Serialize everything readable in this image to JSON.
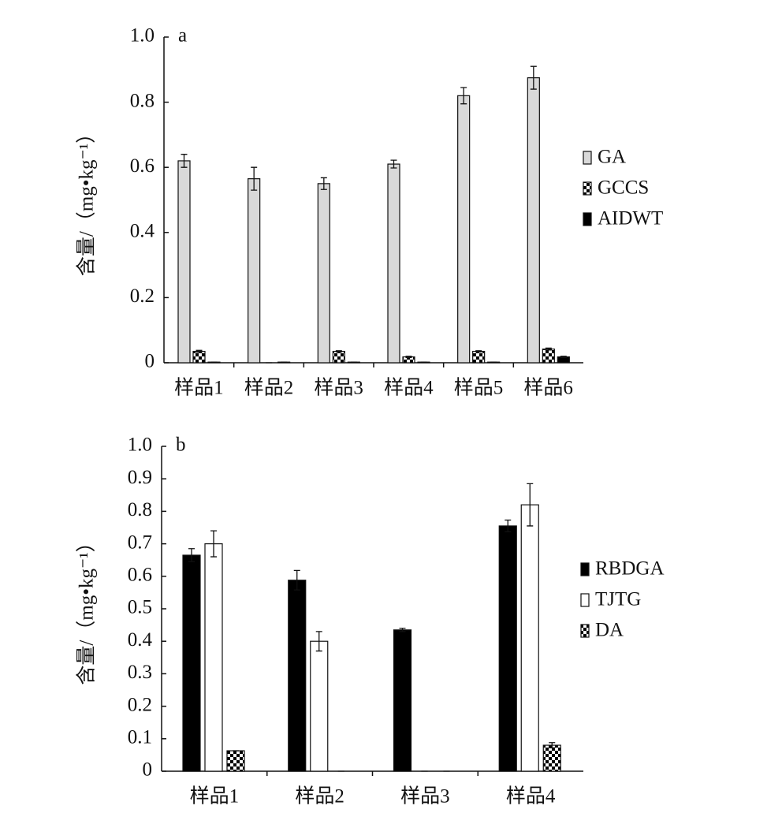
{
  "chart_data": [
    {
      "type": "bar",
      "panel_label": "a",
      "ylabel": "含量/（mg•kg⁻¹）",
      "categories": [
        "样品1",
        "样品2",
        "样品3",
        "样品4",
        "样品5",
        "样品6"
      ],
      "series": [
        {
          "name": "GA",
          "color": "#d9d9d9",
          "values": [
            0.62,
            0.565,
            0.55,
            0.61,
            0.82,
            0.875
          ],
          "errors": [
            0.02,
            0.035,
            0.018,
            0.012,
            0.025,
            0.035
          ]
        },
        {
          "name": "GCCS",
          "color": "#000000",
          "pattern": "checker",
          "values": [
            0.035,
            0,
            0.035,
            0.018,
            0.035,
            0.042
          ],
          "errors": [
            0.003,
            0,
            0.002,
            0.002,
            0.002,
            0.003
          ]
        },
        {
          "name": "AIDWT",
          "color": "#000000",
          "values": [
            0.002,
            0.002,
            0.002,
            0.002,
            0.002,
            0.018
          ],
          "errors": [
            0,
            0,
            0,
            0,
            0,
            0.002
          ]
        }
      ],
      "ylim": [
        0,
        1
      ],
      "yticks": [
        0,
        0.2,
        0.4,
        0.6,
        0.8,
        {
          "value": 1,
          "label": "1.0"
        }
      ]
    },
    {
      "type": "bar",
      "panel_label": "b",
      "ylabel": "含量/（mg•kg⁻¹）",
      "categories": [
        "样品1",
        "样品2",
        "样品3",
        "样品4"
      ],
      "series": [
        {
          "name": "RBDGA",
          "color": "#000000",
          "values": [
            0.665,
            0.588,
            0.435,
            0.755
          ],
          "errors": [
            0.02,
            0.03,
            0.005,
            0.018
          ]
        },
        {
          "name": "TJTG",
          "color": "#ffffff",
          "values": [
            0.7,
            0.4,
            0,
            0.82
          ],
          "errors": [
            0.04,
            0.03,
            0,
            0.065
          ]
        },
        {
          "name": "DA",
          "color": "#000000",
          "pattern": "checker",
          "values": [
            0.063,
            0,
            0,
            0.08
          ],
          "errors": [
            0,
            0,
            0,
            0.008
          ]
        }
      ],
      "ylim": [
        0,
        1
      ],
      "yticks": [
        0,
        0.1,
        0.2,
        0.3,
        0.4,
        0.5,
        0.6,
        0.7,
        0.8,
        0.9,
        {
          "value": 1,
          "label": "1.0"
        }
      ]
    }
  ]
}
